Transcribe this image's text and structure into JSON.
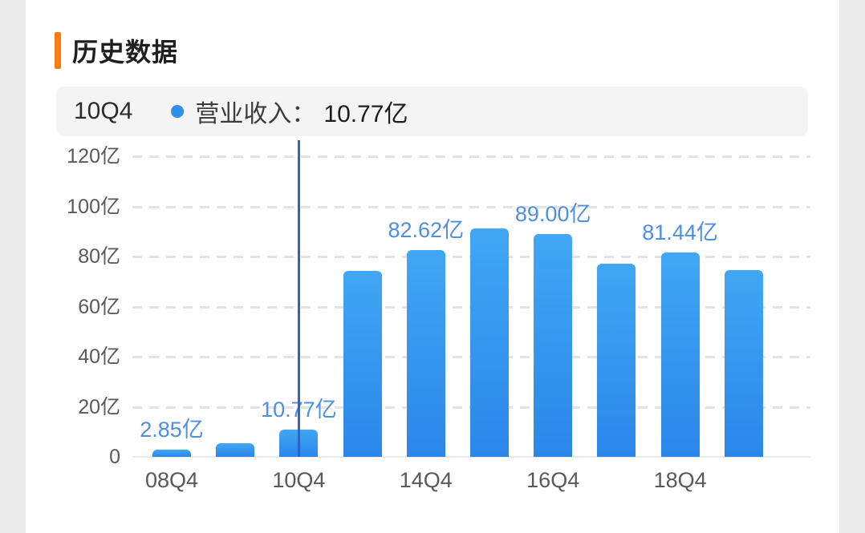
{
  "header": {
    "title": "历史数据"
  },
  "tooltip": {
    "period": "10Q4",
    "series_label": "营业收入：",
    "value": "10.77亿"
  },
  "chart_data": {
    "type": "bar",
    "title": "历史数据",
    "series_name": "营业收入",
    "unit": "亿",
    "selected_index": 2,
    "selected_point": {
      "tick": "10Q4",
      "value": 10.77,
      "label": "10.77亿"
    },
    "y_axis": {
      "min": 0,
      "max": 120,
      "ticks": [
        {
          "label": "120亿",
          "value": 120
        },
        {
          "label": "100亿",
          "value": 100
        },
        {
          "label": "80亿",
          "value": 80
        },
        {
          "label": "60亿",
          "value": 60
        },
        {
          "label": "40亿",
          "value": 40
        },
        {
          "label": "20亿",
          "value": 20
        },
        {
          "label": "0",
          "value": 0
        }
      ]
    },
    "points": [
      {
        "tick": "08Q4",
        "value": 2.85,
        "label": "2.85亿"
      },
      {
        "tick": "",
        "value": 5.4,
        "label": ""
      },
      {
        "tick": "10Q4",
        "value": 10.77,
        "label": "10.77亿"
      },
      {
        "tick": "",
        "value": 74.2,
        "label": ""
      },
      {
        "tick": "14Q4",
        "value": 82.62,
        "label": "82.62亿"
      },
      {
        "tick": "",
        "value": 91.2,
        "label": ""
      },
      {
        "tick": "16Q4",
        "value": 89.0,
        "label": "89.00亿"
      },
      {
        "tick": "",
        "value": 77.1,
        "label": ""
      },
      {
        "tick": "18Q4",
        "value": 81.44,
        "label": "81.44亿"
      },
      {
        "tick": "",
        "value": 74.6,
        "label": ""
      }
    ],
    "grid": "dashed-horizontal",
    "legend": "none"
  },
  "colors": {
    "accent_orange": "#F97B11",
    "bar_top": "#41A7F4",
    "bar_bottom": "#2B86EA",
    "crosshair_blue": "#3A5CC5",
    "value_label_blue": "#4F8FDF",
    "series_dot_blue": "#2E90E9",
    "tooltip_bg": "#F4F4F5",
    "axis_text": "#595959",
    "title_text": "#1F1F1F",
    "gridline": "#E3E3E7",
    "edge_strip": "#ECECEC"
  }
}
